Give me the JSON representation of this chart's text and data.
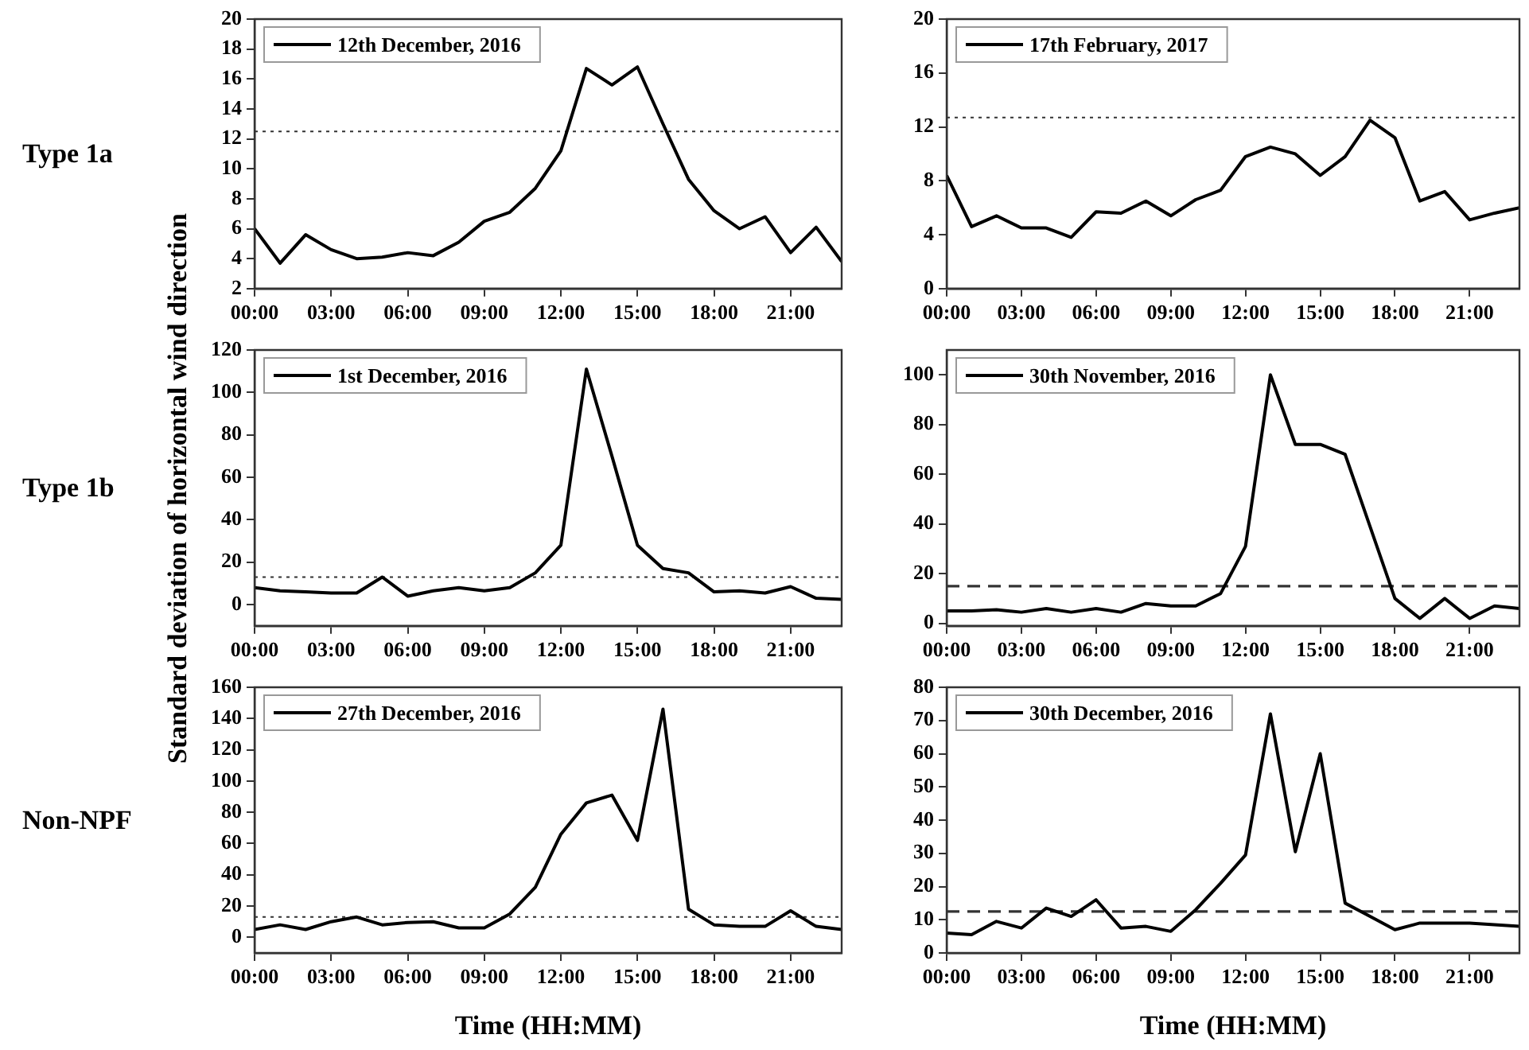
{
  "chart_data": [
    {
      "type": "line",
      "x": [
        0,
        1,
        2,
        3,
        4,
        5,
        6,
        7,
        8,
        9,
        10,
        11,
        12,
        13,
        14,
        15,
        16,
        17,
        18,
        19,
        20,
        21,
        22,
        23
      ],
      "xlim": [
        0,
        23
      ],
      "xticks": [
        {
          "value": 0,
          "label": "00:00"
        },
        {
          "value": 3,
          "label": "03:00"
        },
        {
          "value": 6,
          "label": "06:00"
        },
        {
          "value": 9,
          "label": "09:00"
        },
        {
          "value": 12,
          "label": "12:00"
        },
        {
          "value": 15,
          "label": "15:00"
        },
        {
          "value": 18,
          "label": "18:00"
        },
        {
          "value": 21,
          "label": "21:00"
        }
      ],
      "ylim": [
        2,
        20
      ],
      "yticks": [
        2,
        4,
        6,
        8,
        10,
        12,
        14,
        16,
        18,
        20
      ],
      "legend": "top left",
      "grid": false,
      "marker": "none",
      "annotations": [
        "Type 1a"
      ],
      "series": [
        {
          "name": "12th December, 2016",
          "color": "#000000",
          "values": [
            6.0,
            3.7,
            5.6,
            4.6,
            4.0,
            4.1,
            4.4,
            4.2,
            5.1,
            6.5,
            7.1,
            8.7,
            11.2,
            16.7,
            15.6,
            16.8,
            13.0,
            9.3,
            7.2,
            6.0,
            6.8,
            4.4,
            6.1,
            3.8
          ]
        }
      ],
      "ref_lines": [
        {
          "axis": "y",
          "value": 12.5,
          "line_style": "dotted",
          "color": "#333333"
        }
      ]
    },
    {
      "type": "line",
      "x": [
        0,
        1,
        2,
        3,
        4,
        5,
        6,
        7,
        8,
        9,
        10,
        11,
        12,
        13,
        14,
        15,
        16,
        17,
        18,
        19,
        20,
        21,
        22,
        23
      ],
      "xlim": [
        0,
        23
      ],
      "xticks": [
        {
          "value": 0,
          "label": "00:00"
        },
        {
          "value": 3,
          "label": "03:00"
        },
        {
          "value": 6,
          "label": "06:00"
        },
        {
          "value": 9,
          "label": "09:00"
        },
        {
          "value": 12,
          "label": "12:00"
        },
        {
          "value": 15,
          "label": "15:00"
        },
        {
          "value": 18,
          "label": "18:00"
        },
        {
          "value": 21,
          "label": "21:00"
        }
      ],
      "ylim": [
        0,
        20
      ],
      "yticks": [
        0,
        4,
        8,
        12,
        16,
        20
      ],
      "legend": "top left",
      "grid": false,
      "marker": "none",
      "series": [
        {
          "name": "17th February, 2017",
          "color": "#000000",
          "values": [
            8.4,
            4.6,
            5.4,
            4.5,
            4.5,
            3.8,
            5.7,
            5.6,
            6.5,
            5.4,
            6.6,
            7.3,
            9.8,
            10.5,
            10.0,
            8.4,
            9.8,
            12.5,
            11.2,
            6.5,
            7.2,
            5.1,
            5.6,
            6.0
          ]
        }
      ],
      "ref_lines": [
        {
          "axis": "y",
          "value": 12.7,
          "line_style": "dotted",
          "color": "#333333"
        }
      ]
    },
    {
      "type": "line",
      "x": [
        0,
        1,
        2,
        3,
        4,
        5,
        6,
        7,
        8,
        9,
        10,
        11,
        12,
        13,
        14,
        15,
        16,
        17,
        18,
        19,
        20,
        21,
        22,
        23
      ],
      "xlim": [
        0,
        23
      ],
      "xticks": [
        {
          "value": 0,
          "label": "00:00"
        },
        {
          "value": 3,
          "label": "03:00"
        },
        {
          "value": 6,
          "label": "06:00"
        },
        {
          "value": 9,
          "label": "09:00"
        },
        {
          "value": 12,
          "label": "12:00"
        },
        {
          "value": 15,
          "label": "15:00"
        },
        {
          "value": 18,
          "label": "18:00"
        },
        {
          "value": 21,
          "label": "21:00"
        }
      ],
      "ylim": [
        -10,
        120
      ],
      "yticks": [
        0,
        20,
        40,
        60,
        80,
        100,
        120
      ],
      "legend": "top left",
      "grid": false,
      "marker": "none",
      "ylabel": "Standard deviation of horizontal wind direction",
      "annotations": [
        "Type 1b"
      ],
      "series": [
        {
          "name": "1st December, 2016",
          "color": "#000000",
          "values": [
            8,
            6.5,
            6,
            5.5,
            5.5,
            13,
            4,
            6.5,
            8,
            6.5,
            8,
            15,
            28,
            111,
            70,
            28,
            17,
            15,
            6,
            6.5,
            5.5,
            8.5,
            3,
            2.5
          ]
        }
      ],
      "ref_lines": [
        {
          "axis": "y",
          "value": 13,
          "line_style": "dotted",
          "color": "#333333"
        }
      ]
    },
    {
      "type": "line",
      "x": [
        0,
        1,
        2,
        3,
        4,
        5,
        6,
        7,
        8,
        9,
        10,
        11,
        12,
        13,
        14,
        15,
        16,
        17,
        18,
        19,
        20,
        21,
        22,
        23
      ],
      "xlim": [
        0,
        23
      ],
      "xticks": [
        {
          "value": 0,
          "label": "00:00"
        },
        {
          "value": 3,
          "label": "03:00"
        },
        {
          "value": 6,
          "label": "06:00"
        },
        {
          "value": 9,
          "label": "09:00"
        },
        {
          "value": 12,
          "label": "12:00"
        },
        {
          "value": 15,
          "label": "15:00"
        },
        {
          "value": 18,
          "label": "18:00"
        },
        {
          "value": 21,
          "label": "21:00"
        }
      ],
      "ylim": [
        -1,
        110
      ],
      "yticks": [
        0,
        20,
        40,
        60,
        80,
        100
      ],
      "legend": "top left",
      "grid": false,
      "marker": "none",
      "series": [
        {
          "name": "30th November, 2016",
          "color": "#000000",
          "values": [
            5,
            5,
            5.5,
            4.5,
            6,
            4.5,
            6,
            4.5,
            8,
            7,
            7,
            12,
            31,
            100,
            72,
            72,
            68,
            39,
            10,
            2,
            10,
            2,
            7,
            6
          ]
        }
      ],
      "ref_lines": [
        {
          "axis": "y",
          "value": 15,
          "line_style": "dashed",
          "color": "#333333"
        }
      ]
    },
    {
      "type": "line",
      "x": [
        0,
        1,
        2,
        3,
        4,
        5,
        6,
        7,
        8,
        9,
        10,
        11,
        12,
        13,
        14,
        15,
        16,
        17,
        18,
        19,
        20,
        21,
        22,
        23
      ],
      "xlim": [
        0,
        23
      ],
      "xticks": [
        {
          "value": 0,
          "label": "00:00"
        },
        {
          "value": 3,
          "label": "03:00"
        },
        {
          "value": 6,
          "label": "06:00"
        },
        {
          "value": 9,
          "label": "09:00"
        },
        {
          "value": 12,
          "label": "12:00"
        },
        {
          "value": 15,
          "label": "15:00"
        },
        {
          "value": 18,
          "label": "18:00"
        },
        {
          "value": 21,
          "label": "21:00"
        }
      ],
      "ylim": [
        -10,
        160
      ],
      "yticks": [
        0,
        20,
        40,
        60,
        80,
        100,
        120,
        140,
        160
      ],
      "legend": "top left",
      "grid": false,
      "marker": "none",
      "xlabel": "Time (HH:MM)",
      "annotations": [
        "Non-NPF"
      ],
      "series": [
        {
          "name": "27th December, 2016",
          "color": "#000000",
          "values": [
            5,
            8,
            5,
            10,
            13,
            8,
            9.5,
            10,
            6,
            6,
            15,
            32,
            66,
            86,
            91,
            62,
            146,
            18,
            8,
            7,
            7,
            17,
            7,
            5
          ]
        }
      ],
      "ref_lines": [
        {
          "axis": "y",
          "value": 13,
          "line_style": "dotted",
          "color": "#333333"
        }
      ]
    },
    {
      "type": "line",
      "x": [
        0,
        1,
        2,
        3,
        4,
        5,
        6,
        7,
        8,
        9,
        10,
        11,
        12,
        13,
        14,
        15,
        16,
        17,
        18,
        19,
        20,
        21,
        22,
        23
      ],
      "xlim": [
        0,
        23
      ],
      "xticks": [
        {
          "value": 0,
          "label": "00:00"
        },
        {
          "value": 3,
          "label": "03:00"
        },
        {
          "value": 6,
          "label": "06:00"
        },
        {
          "value": 9,
          "label": "09:00"
        },
        {
          "value": 12,
          "label": "12:00"
        },
        {
          "value": 15,
          "label": "15:00"
        },
        {
          "value": 18,
          "label": "18:00"
        },
        {
          "value": 21,
          "label": "21:00"
        }
      ],
      "ylim": [
        0,
        80
      ],
      "yticks": [
        0,
        10,
        20,
        30,
        40,
        50,
        60,
        70,
        80
      ],
      "legend": "top left",
      "grid": false,
      "marker": "none",
      "xlabel": "Time (HH:MM)",
      "series": [
        {
          "name": "30th December, 2016",
          "color": "#000000",
          "values": [
            6,
            5.5,
            9.5,
            7.5,
            13.5,
            11,
            16,
            7.5,
            8,
            6.5,
            13,
            21,
            29.5,
            72,
            30.5,
            60,
            15,
            11,
            7,
            9,
            9,
            9,
            8.5,
            8
          ]
        }
      ],
      "ref_lines": [
        {
          "axis": "y",
          "value": 12.5,
          "line_style": "dashed",
          "color": "#333333"
        }
      ]
    }
  ]
}
